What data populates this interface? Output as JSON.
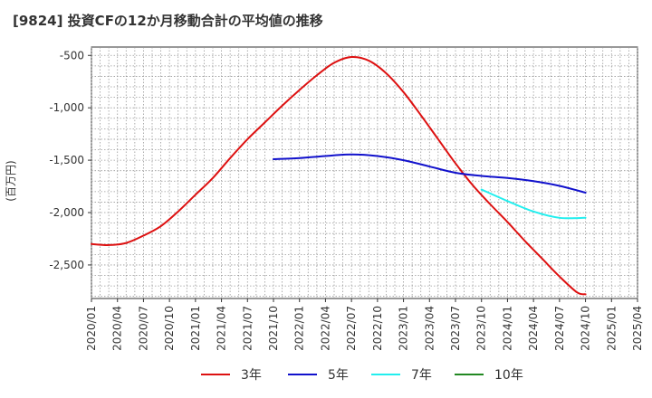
{
  "chart_data": {
    "type": "line",
    "title": "[9824]  投資CFの12か月移動合計の平均値の推移",
    "xlabel": "",
    "ylabel": "(百万円)",
    "ylim": [
      -2820,
      -420
    ],
    "yticks": [
      -500,
      -1000,
      -1500,
      -2000,
      -2500
    ],
    "ytick_labels": [
      "-500",
      "-1,000",
      "-1,500",
      "-2,000",
      "-2,500"
    ],
    "xticks": [
      "2020/01",
      "2020/04",
      "2020/07",
      "2020/10",
      "2021/01",
      "2021/04",
      "2021/07",
      "2021/10",
      "2022/01",
      "2022/04",
      "2022/07",
      "2022/10",
      "2023/01",
      "2023/04",
      "2023/07",
      "2023/10",
      "2024/01",
      "2024/04",
      "2024/07",
      "2024/10",
      "2025/01",
      "2025/04"
    ],
    "grid": true,
    "legend_position": "bottom",
    "series": [
      {
        "name": "3年",
        "color": "#dd1111",
        "points": [
          [
            "2020/01",
            -2300
          ],
          [
            "2020/03",
            -2310
          ],
          [
            "2020/05",
            -2290
          ],
          [
            "2020/07",
            -2220
          ],
          [
            "2020/09",
            -2130
          ],
          [
            "2020/11",
            -1990
          ],
          [
            "2021/01",
            -1830
          ],
          [
            "2021/03",
            -1670
          ],
          [
            "2021/05",
            -1480
          ],
          [
            "2021/07",
            -1300
          ],
          [
            "2021/09",
            -1140
          ],
          [
            "2021/11",
            -980
          ],
          [
            "2022/01",
            -830
          ],
          [
            "2022/03",
            -690
          ],
          [
            "2022/05",
            -570
          ],
          [
            "2022/07",
            -515
          ],
          [
            "2022/09",
            -550
          ],
          [
            "2022/11",
            -670
          ],
          [
            "2023/01",
            -850
          ],
          [
            "2023/03",
            -1070
          ],
          [
            "2023/05",
            -1300
          ],
          [
            "2023/07",
            -1530
          ],
          [
            "2023/09",
            -1740
          ],
          [
            "2023/11",
            -1920
          ],
          [
            "2024/01",
            -2090
          ],
          [
            "2024/03",
            -2270
          ],
          [
            "2024/05",
            -2440
          ],
          [
            "2024/07",
            -2610
          ],
          [
            "2024/09",
            -2760
          ],
          [
            "2024/10",
            -2780
          ]
        ]
      },
      {
        "name": "5年",
        "color": "#1111cc",
        "points": [
          [
            "2021/10",
            -1490
          ],
          [
            "2022/01",
            -1480
          ],
          [
            "2022/04",
            -1460
          ],
          [
            "2022/07",
            -1445
          ],
          [
            "2022/10",
            -1460
          ],
          [
            "2023/01",
            -1500
          ],
          [
            "2023/04",
            -1560
          ],
          [
            "2023/07",
            -1620
          ],
          [
            "2023/10",
            -1650
          ],
          [
            "2024/01",
            -1670
          ],
          [
            "2024/04",
            -1700
          ],
          [
            "2024/07",
            -1745
          ],
          [
            "2024/10",
            -1810
          ]
        ]
      },
      {
        "name": "7年",
        "color": "#22eeee",
        "points": [
          [
            "2023/10",
            -1780
          ],
          [
            "2024/01",
            -1890
          ],
          [
            "2024/04",
            -1990
          ],
          [
            "2024/07",
            -2050
          ],
          [
            "2024/10",
            -2050
          ]
        ]
      },
      {
        "name": "10年",
        "color": "#228822",
        "points": []
      }
    ]
  }
}
